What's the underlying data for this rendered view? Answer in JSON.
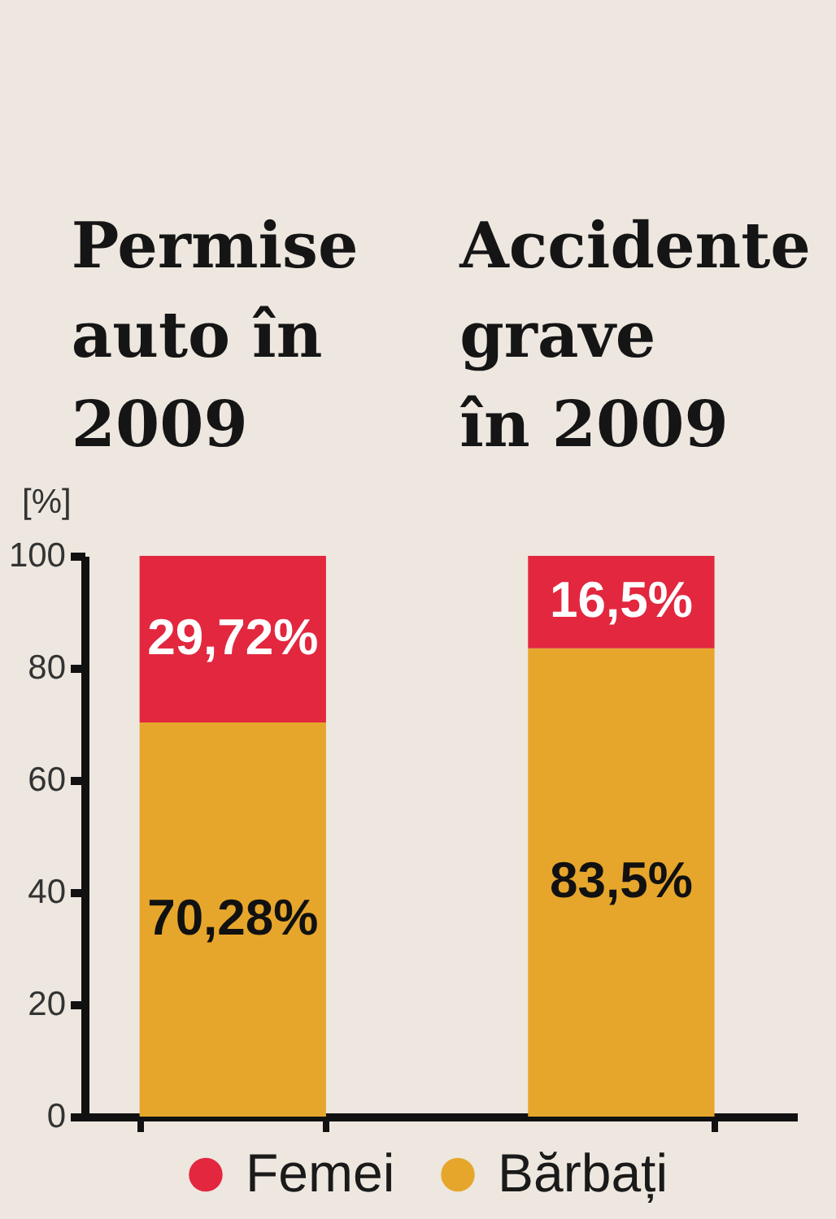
{
  "chart_data": {
    "type": "bar",
    "stacked": true,
    "categories": [
      "Permise auto în 2009",
      "Accidente grave în 2009"
    ],
    "ylabel": "[%]",
    "ylim": [
      0,
      100
    ],
    "yticks": [
      0,
      20,
      40,
      60,
      80,
      100
    ],
    "series": [
      {
        "name": "Bărbați",
        "color": "#e6a62c",
        "values": [
          70.28,
          83.5
        ],
        "value_labels": [
          "70,28%",
          "83,5%"
        ]
      },
      {
        "name": "Femei",
        "color": "#e2273f",
        "values": [
          29.72,
          16.5
        ],
        "value_labels": [
          "29,72%",
          "16,5%"
        ]
      }
    ],
    "legend": "bottom"
  }
}
